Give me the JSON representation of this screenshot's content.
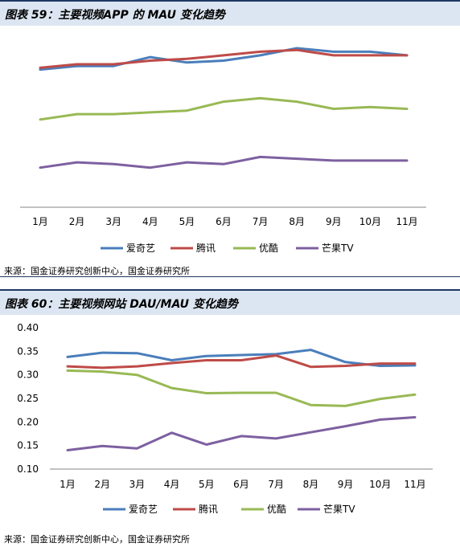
{
  "colors": {
    "iqiyi": "#4a7ebb",
    "tencent": "#be4b48",
    "youku": "#98b954",
    "mango": "#7d60a0",
    "title_bg": "#dce6f2",
    "title_border": "#1f3864"
  },
  "chart1": {
    "title": "图表 59：主要视频APP 的 MAU 变化趋势",
    "source": "来源：国金证券研究创新中心，国金证券研究所",
    "chart_data": {
      "type": "line",
      "title": "主要视频APP 的 MAU 变化趋势",
      "categories": [
        "1月",
        "2月",
        "3月",
        "4月",
        "5月",
        "6月",
        "7月",
        "8月",
        "9月",
        "10月",
        "11月"
      ],
      "y_axis_labels_shown": false,
      "grid": false,
      "legend_position": "bottom",
      "value_note": "relative level; no y-axis scale shown",
      "ylim": [
        0,
        1
      ],
      "series": [
        {
          "name": "爱奇艺",
          "color": "#4a7ebb",
          "values": [
            0.88,
            0.9,
            0.9,
            0.95,
            0.92,
            0.93,
            0.96,
            1.0,
            0.98,
            0.98,
            0.96
          ]
        },
        {
          "name": "腾讯",
          "color": "#be4b48",
          "values": [
            0.89,
            0.91,
            0.91,
            0.93,
            0.94,
            0.96,
            0.98,
            0.99,
            0.96,
            0.96,
            0.96
          ]
        },
        {
          "name": "优酷",
          "color": "#98b954",
          "values": [
            0.6,
            0.63,
            0.63,
            0.64,
            0.65,
            0.7,
            0.72,
            0.7,
            0.66,
            0.67,
            0.66
          ]
        },
        {
          "name": "芒果TV",
          "color": "#7d60a0",
          "values": [
            0.33,
            0.36,
            0.35,
            0.33,
            0.36,
            0.35,
            0.39,
            0.38,
            0.37,
            0.37,
            0.37
          ]
        }
      ]
    }
  },
  "chart2": {
    "title": "图表 60：主要视频网站 DAU/MAU 变化趋势",
    "source": "来源：国金证券研究创新中心，国金证券研究所",
    "chart_data": {
      "type": "line",
      "title": "主要视频网站 DAU/MAU 变化趋势",
      "categories": [
        "1月",
        "2月",
        "3月",
        "4月",
        "5月",
        "6月",
        "7月",
        "8月",
        "9月",
        "10月",
        "11月"
      ],
      "y_ticks": [
        "0.10",
        "0.15",
        "0.20",
        "0.25",
        "0.30",
        "0.35",
        "0.40"
      ],
      "ylim": [
        0.1,
        0.4
      ],
      "grid": false,
      "legend_position": "bottom",
      "series": [
        {
          "name": "爱奇艺",
          "color": "#4a7ebb",
          "values": [
            0.338,
            0.347,
            0.346,
            0.331,
            0.34,
            0.342,
            0.344,
            0.353,
            0.327,
            0.319,
            0.32
          ]
        },
        {
          "name": "腾讯",
          "color": "#be4b48",
          "values": [
            0.318,
            0.315,
            0.318,
            0.325,
            0.331,
            0.331,
            0.341,
            0.317,
            0.319,
            0.324,
            0.324
          ]
        },
        {
          "name": "优酷",
          "color": "#98b954",
          "values": [
            0.309,
            0.307,
            0.3,
            0.272,
            0.261,
            0.262,
            0.262,
            0.236,
            0.234,
            0.249,
            0.258
          ]
        },
        {
          "name": "芒果TV",
          "color": "#7d60a0",
          "values": [
            0.14,
            0.149,
            0.144,
            0.177,
            0.152,
            0.17,
            0.165,
            0.178,
            0.191,
            0.205,
            0.21
          ]
        }
      ]
    }
  }
}
